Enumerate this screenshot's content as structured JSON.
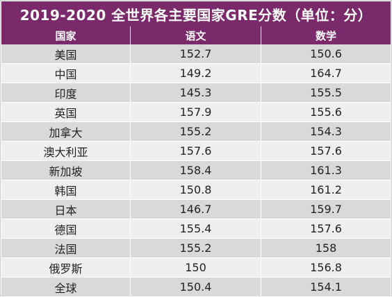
{
  "title": "2019-2020 全世界各主要国家GRE分数（单位：分）",
  "headers": {
    "country": "国家",
    "verbal": "语文",
    "math": "数学"
  },
  "rows": [
    {
      "country": "美国",
      "verbal": "152.7",
      "math": "150.6"
    },
    {
      "country": "中国",
      "verbal": "149.2",
      "math": "164.7"
    },
    {
      "country": "印度",
      "verbal": "145.3",
      "math": "155.5"
    },
    {
      "country": "英国",
      "verbal": "157.9",
      "math": "155.6"
    },
    {
      "country": "加拿大",
      "verbal": "155.2",
      "math": "154.3"
    },
    {
      "country": "澳大利亚",
      "verbal": "157.6",
      "math": "157.6"
    },
    {
      "country": "新加坡",
      "verbal": "158.4",
      "math": "161.3"
    },
    {
      "country": "韩国",
      "verbal": "150.8",
      "math": "161.2"
    },
    {
      "country": "日本",
      "verbal": "146.7",
      "math": "159.7"
    },
    {
      "country": "德国",
      "verbal": "155.4",
      "math": "157.6"
    },
    {
      "country": "法国",
      "verbal": "155.2",
      "math": "158"
    },
    {
      "country": "俄罗斯",
      "verbal": "150",
      "math": "156.8"
    },
    {
      "country": "全球",
      "verbal": "150.4",
      "math": "154.1"
    }
  ],
  "colors": {
    "header_bg": "#7a2a6a",
    "row_odd": "#d9d9d9",
    "row_even": "#efefef"
  }
}
